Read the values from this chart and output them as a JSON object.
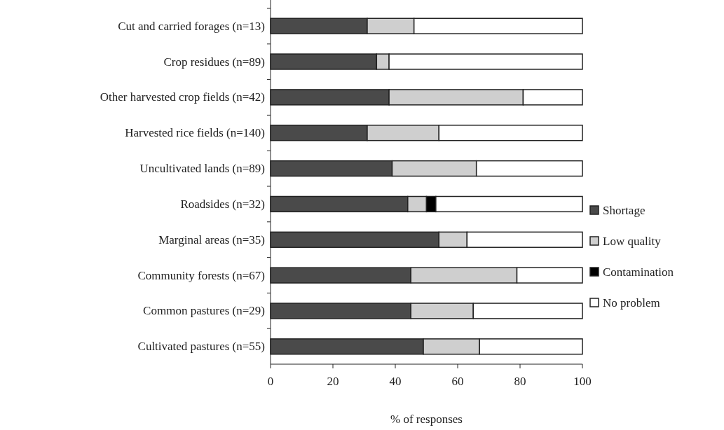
{
  "chart_data": {
    "type": "bar",
    "orientation": "horizontal",
    "stacked": true,
    "xlabel": "% of responses",
    "categories": [
      "Cut and carried forages (n=13)",
      "Crop residues (n=89)",
      "Other harvested crop fields (n=42)",
      "Harvested rice fields (n=140)",
      "Uncultivated lands (n=89)",
      "Roadsides (n=32)",
      "Marginal areas (n=35)",
      "Community forests (n=67)",
      "Common pastures (n=29)",
      "Cultivated pastures (n=55)"
    ],
    "series": [
      {
        "name": "Shortage",
        "color": "#4a4a4a",
        "values": [
          31,
          34,
          38,
          31,
          39,
          44,
          54,
          45,
          45,
          49
        ]
      },
      {
        "name": "Low quality",
        "color": "#cfcfcf",
        "values": [
          15,
          4,
          43,
          23,
          27,
          6,
          9,
          34,
          20,
          18
        ]
      },
      {
        "name": "Contamination",
        "color": "#000000",
        "values": [
          0,
          0,
          0,
          0,
          0,
          3,
          0,
          0,
          0,
          0
        ]
      },
      {
        "name": "No problem",
        "color": "#ffffff",
        "values": [
          54,
          62,
          19,
          46,
          34,
          47,
          37,
          21,
          35,
          33
        ]
      }
    ],
    "xlim": [
      0,
      100
    ],
    "xticks": [
      0,
      20,
      40,
      60,
      80,
      100
    ],
    "grid": false,
    "legend": "right"
  }
}
